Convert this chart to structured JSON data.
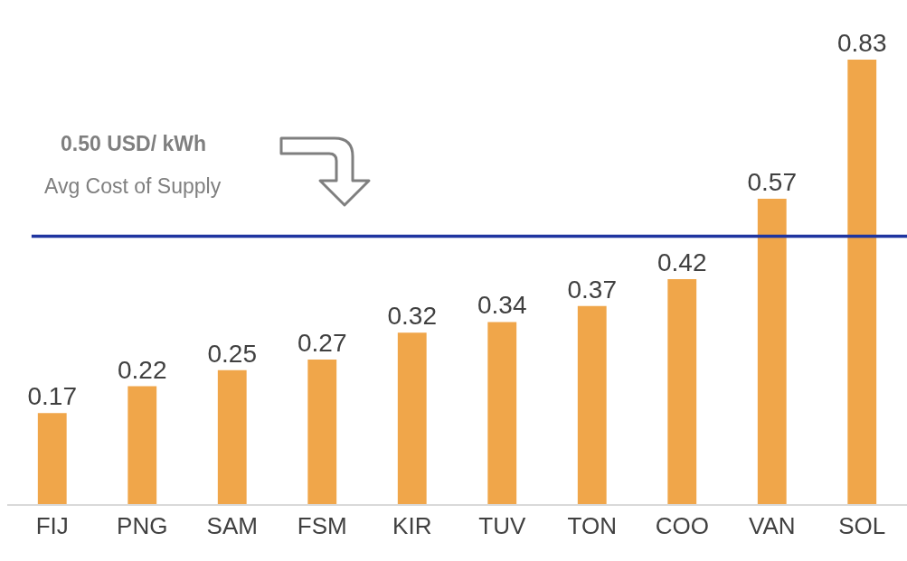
{
  "chart_data": {
    "type": "bar",
    "categories": [
      "FIJ",
      "PNG",
      "SAM",
      "FSM",
      "KIR",
      "TUV",
      "TON",
      "COO",
      "VAN",
      "SOL"
    ],
    "values": [
      0.17,
      0.22,
      0.25,
      0.27,
      0.32,
      0.34,
      0.37,
      0.42,
      0.57,
      0.83
    ],
    "color": "#f0a64a",
    "data_labels": true,
    "tick_labels": "x",
    "grid": false,
    "ref_lines": [
      {
        "axis": "y",
        "value": 0.5,
        "color": "#1f35a0"
      }
    ],
    "annotations": [
      "0.50 USD/ kWh",
      "Avg Cost of Supply"
    ]
  }
}
